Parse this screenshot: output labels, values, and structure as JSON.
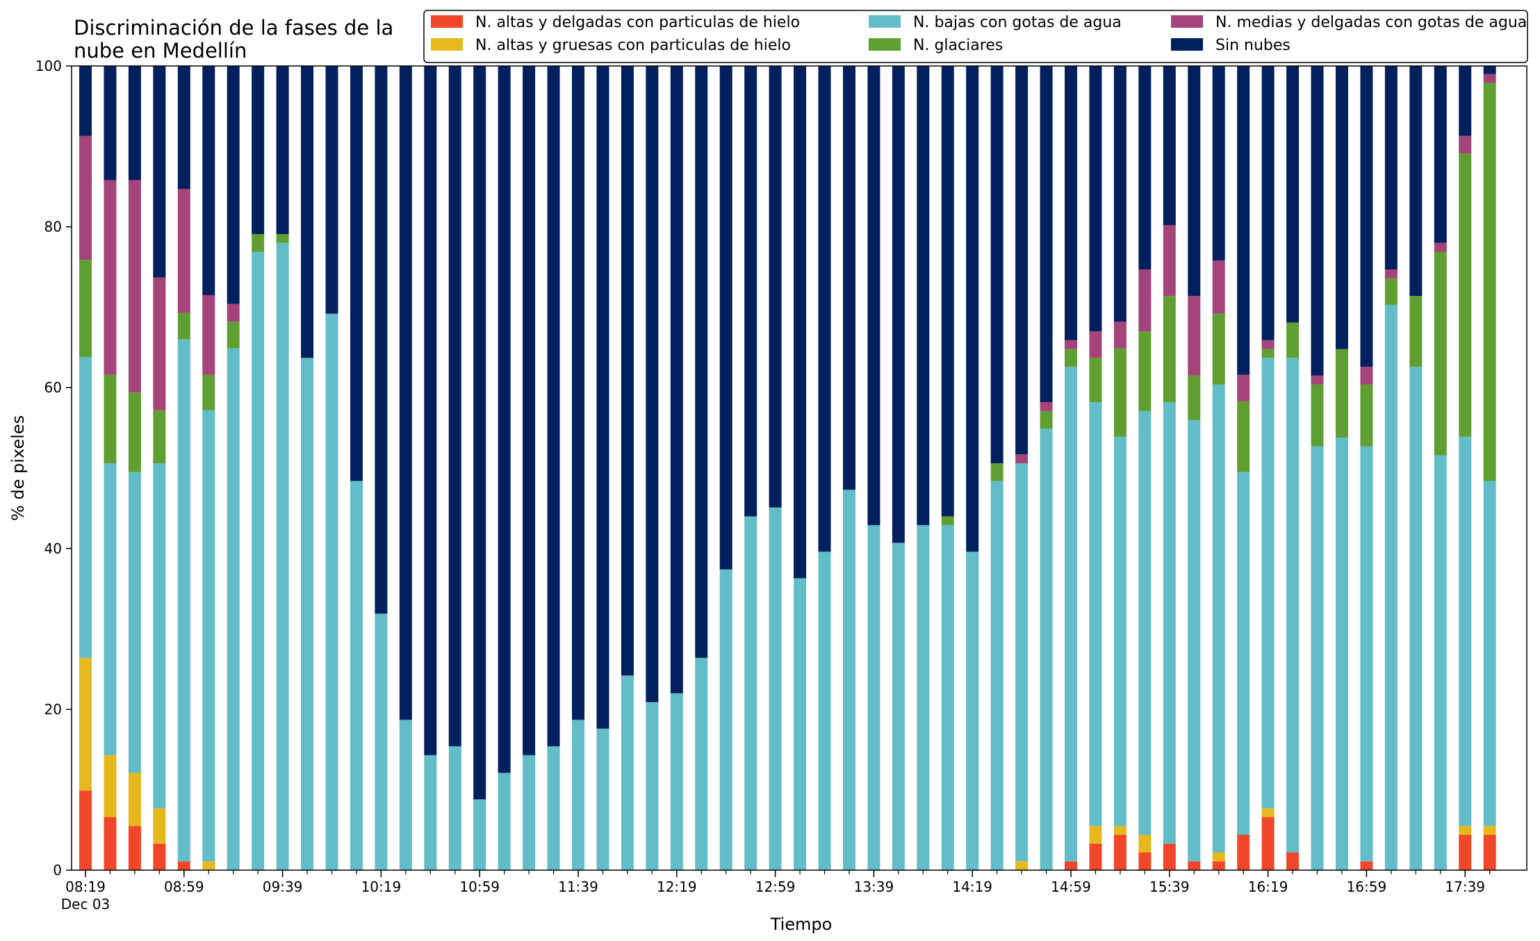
{
  "chart_data": {
    "type": "bar",
    "stacked": true,
    "title": "Discriminación de la fases de la nube en Medellín",
    "title_lines": [
      "Discriminación de la fases de la",
      "nube en Medellín"
    ],
    "xlabel": "Tiempo",
    "ylabel": "% de pixeles",
    "ylim": [
      0,
      100
    ],
    "yticks": [
      0,
      20,
      40,
      60,
      80,
      100
    ],
    "grid": false,
    "legend_position": "top-right",
    "x_start": "08:19",
    "x_step_minutes": 10,
    "x_tick_labels": [
      "08:19",
      "08:59",
      "09:39",
      "10:19",
      "10:59",
      "11:39",
      "12:19",
      "12:59",
      "13:39",
      "14:19",
      "14:59",
      "15:39",
      "16:19",
      "16:59",
      "17:39"
    ],
    "x_tick_sublabel": "Dec 03",
    "categories": [
      "08:19",
      "08:29",
      "08:39",
      "08:49",
      "08:59",
      "09:09",
      "09:19",
      "09:29",
      "09:39",
      "09:49",
      "09:59",
      "10:09",
      "10:19",
      "10:29",
      "10:39",
      "10:49",
      "10:59",
      "11:09",
      "11:19",
      "11:29",
      "11:39",
      "11:49",
      "11:59",
      "12:09",
      "12:19",
      "12:29",
      "12:39",
      "12:49",
      "12:59",
      "13:09",
      "13:19",
      "13:29",
      "13:39",
      "13:49",
      "13:59",
      "14:09",
      "14:19",
      "14:29",
      "14:39",
      "14:49",
      "14:59",
      "15:09",
      "15:19",
      "15:29",
      "15:39",
      "15:49",
      "15:59",
      "16:09",
      "16:19",
      "16:29",
      "16:39",
      "16:49",
      "16:59",
      "17:09",
      "17:19",
      "17:29",
      "17:39",
      "17:49"
    ],
    "series": [
      {
        "name": "N. altas y delgadas con particulas de hielo",
        "color": "#f0462a",
        "values": [
          9.9,
          6.6,
          5.5,
          3.3,
          1.1,
          0,
          0,
          0,
          0,
          0,
          0,
          0,
          0,
          0,
          0,
          0,
          0,
          0,
          0,
          0,
          0,
          0,
          0,
          0,
          0,
          0,
          0,
          0,
          0,
          0,
          0,
          0,
          0,
          0,
          0,
          0,
          0,
          0,
          0,
          0,
          1.1,
          3.3,
          4.4,
          2.2,
          3.3,
          1.1,
          1.1,
          4.4,
          6.6,
          2.2,
          0,
          0,
          1.1,
          0,
          0,
          0,
          4.4,
          4.4
        ]
      },
      {
        "name": "N. altas y gruesas con particulas de hielo",
        "color": "#e6b81e",
        "values": [
          16.5,
          7.7,
          6.6,
          4.4,
          0,
          1.1,
          0,
          0,
          0,
          0,
          0,
          0,
          0,
          0,
          0,
          0,
          0,
          0,
          0,
          0,
          0,
          0,
          0,
          0,
          0,
          0,
          0,
          0,
          0,
          0,
          0,
          0,
          0,
          0,
          0,
          0,
          0,
          0,
          1.1,
          0,
          0,
          2.2,
          1.1,
          2.2,
          0,
          0,
          1.1,
          0,
          1.1,
          0,
          0,
          0,
          0,
          0,
          0,
          0,
          1.1,
          1.1
        ]
      },
      {
        "name": "N. bajas con gotas de agua",
        "color": "#62bdc8",
        "values": [
          37.4,
          36.3,
          37.4,
          42.9,
          64.9,
          56.1,
          64.9,
          76.9,
          78.0,
          63.7,
          69.2,
          48.4,
          31.9,
          18.7,
          14.3,
          15.4,
          8.8,
          12.1,
          14.3,
          15.4,
          18.7,
          17.6,
          24.2,
          20.9,
          22.0,
          26.4,
          37.4,
          44.0,
          45.1,
          36.3,
          39.6,
          47.3,
          42.9,
          40.7,
          42.9,
          42.9,
          39.6,
          48.4,
          49.5,
          54.9,
          61.5,
          52.7,
          48.4,
          52.7,
          54.9,
          54.9,
          58.2,
          45.1,
          56.0,
          61.5,
          52.7,
          53.8,
          51.6,
          70.3,
          62.6,
          51.6,
          48.4,
          42.9
        ]
      },
      {
        "name": "N. glaciares",
        "color": "#5f9f31",
        "values": [
          12.1,
          11.0,
          9.9,
          6.6,
          3.3,
          4.4,
          3.3,
          2.2,
          1.1,
          0,
          0,
          0,
          0,
          0,
          0,
          0,
          0,
          0,
          0,
          0,
          0,
          0,
          0,
          0,
          0,
          0,
          0,
          0,
          0,
          0,
          0,
          0,
          0,
          0,
          0,
          1.1,
          0,
          2.2,
          0,
          2.2,
          2.2,
          5.5,
          11.0,
          9.9,
          13.2,
          5.5,
          8.8,
          8.8,
          1.1,
          4.4,
          7.7,
          11.0,
          7.7,
          3.3,
          8.8,
          25.3,
          35.2,
          49.5
        ]
      },
      {
        "name": "N. medias y delgadas con gotas de agua",
        "color": "#a5447a",
        "values": [
          15.4,
          24.2,
          26.4,
          16.5,
          15.4,
          9.9,
          2.2,
          0,
          0,
          0,
          0,
          0,
          0,
          0,
          0,
          0,
          0,
          0,
          0,
          0,
          0,
          0,
          0,
          0,
          0,
          0,
          0,
          0,
          0,
          0,
          0,
          0,
          0,
          0,
          0,
          0,
          0,
          0,
          1.1,
          1.1,
          1.1,
          3.3,
          3.3,
          7.7,
          8.8,
          9.9,
          6.6,
          3.3,
          1.1,
          0,
          1.1,
          0,
          2.2,
          1.1,
          0,
          1.1,
          2.2,
          1.1
        ]
      },
      {
        "name": "Sin nubes",
        "color": "#021f5e",
        "values": [
          8.7,
          14.2,
          14.2,
          26.3,
          15.3,
          28.5,
          29.6,
          20.9,
          20.9,
          36.3,
          30.8,
          51.6,
          68.1,
          81.3,
          85.7,
          84.6,
          91.2,
          87.9,
          85.7,
          84.6,
          81.3,
          82.4,
          75.8,
          79.1,
          78.0,
          73.6,
          62.6,
          56.0,
          54.9,
          63.7,
          60.4,
          52.7,
          57.1,
          59.3,
          57.1,
          56.0,
          60.4,
          49.4,
          48.3,
          41.8,
          34.1,
          33.0,
          31.8,
          25.3,
          19.8,
          28.6,
          24.2,
          38.4,
          34.1,
          31.9,
          38.5,
          35.2,
          37.4,
          25.3,
          28.6,
          22.0,
          8.7,
          1.0
        ]
      }
    ]
  }
}
